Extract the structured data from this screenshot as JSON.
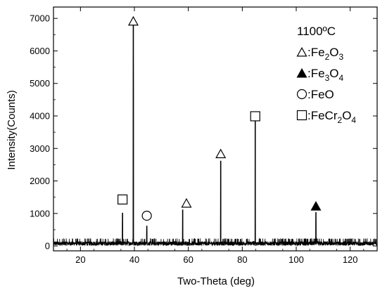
{
  "chart_data": {
    "type": "line",
    "xlabel": "Two-Theta (deg)",
    "ylabel": "Intensity(Counts)",
    "xlim": [
      10,
      130
    ],
    "ylim": [
      -150,
      7350
    ],
    "x_ticks": [
      20,
      40,
      60,
      80,
      100,
      120
    ],
    "y_ticks": [
      0,
      1000,
      2000,
      3000,
      4000,
      5000,
      6000,
      7000
    ],
    "grid": false,
    "peaks": [
      {
        "x": 35.6,
        "y": 1020
      },
      {
        "x": 39.6,
        "y": 6900
      },
      {
        "x": 44.6,
        "y": 620
      },
      {
        "x": 57.9,
        "y": 1120
      },
      {
        "x": 72.0,
        "y": 2620
      },
      {
        "x": 84.8,
        "y": 3930
      },
      {
        "x": 107.3,
        "y": 1040
      }
    ],
    "background_level": 80,
    "noise_amplitude": 140,
    "markers": [
      {
        "symbol": "square-open",
        "x": 35.6,
        "y": 1430
      },
      {
        "symbol": "triangle-open",
        "x": 39.6,
        "y": 6920
      },
      {
        "symbol": "circle-open",
        "x": 44.6,
        "y": 930
      },
      {
        "symbol": "triangle-open",
        "x": 59.3,
        "y": 1320
      },
      {
        "symbol": "triangle-open",
        "x": 72.0,
        "y": 2840
      },
      {
        "symbol": "square-open",
        "x": 84.8,
        "y": 3990
      },
      {
        "symbol": "triangle-filled",
        "x": 107.3,
        "y": 1230
      }
    ],
    "legend": {
      "placement": "top-right",
      "title": "1100ºC",
      "entries": [
        {
          "symbol": "triangle-open",
          "prefix": ":Fe",
          "parts": [
            {
              "t": "2",
              "sub": true
            },
            {
              "t": "O",
              "sub": false
            },
            {
              "t": "3",
              "sub": true
            }
          ]
        },
        {
          "symbol": "triangle-filled",
          "prefix": ":Fe",
          "parts": [
            {
              "t": "3",
              "sub": true
            },
            {
              "t": "O",
              "sub": false
            },
            {
              "t": "4",
              "sub": true
            }
          ]
        },
        {
          "symbol": "circle-open",
          "prefix": ":FeO",
          "parts": []
        },
        {
          "symbol": "square-open",
          "prefix": ":FeCr",
          "parts": [
            {
              "t": "2",
              "sub": true
            },
            {
              "t": "O",
              "sub": false
            },
            {
              "t": "4",
              "sub": true
            }
          ]
        }
      ]
    },
    "line_color": "#000000"
  }
}
